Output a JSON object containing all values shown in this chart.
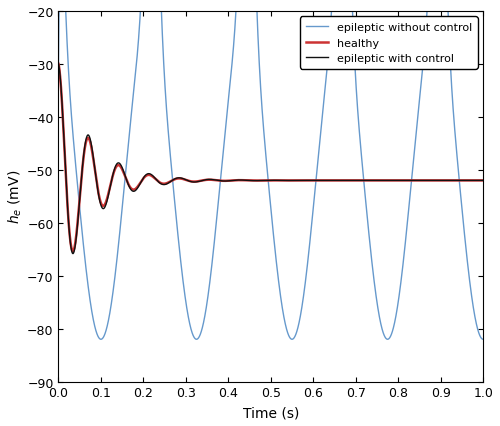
{
  "title": "",
  "xlabel": "Time (s)",
  "ylabel": "$h_e$ (mV)",
  "xlim": [
    0,
    1
  ],
  "ylim": [
    -90,
    -20
  ],
  "yticks": [
    -90,
    -80,
    -70,
    -60,
    -50,
    -40,
    -30,
    -20
  ],
  "xticks": [
    0,
    0.1,
    0.2,
    0.3,
    0.4,
    0.5,
    0.6,
    0.7,
    0.8,
    0.9,
    1.0
  ],
  "colors": {
    "epileptic_no_ctrl": "#6699cc",
    "healthy": "#cc3333",
    "epileptic_ctrl": "#111111"
  },
  "linewidths": {
    "epileptic_no_ctrl": 1.0,
    "healthy": 1.8,
    "epileptic_ctrl": 1.0
  },
  "legend": {
    "epileptic_no_ctrl": "epileptic without control",
    "healthy": "healthy",
    "epileptic_ctrl": "epileptic with control"
  },
  "steady_state": -52.0,
  "bg_color": "#ffffff"
}
